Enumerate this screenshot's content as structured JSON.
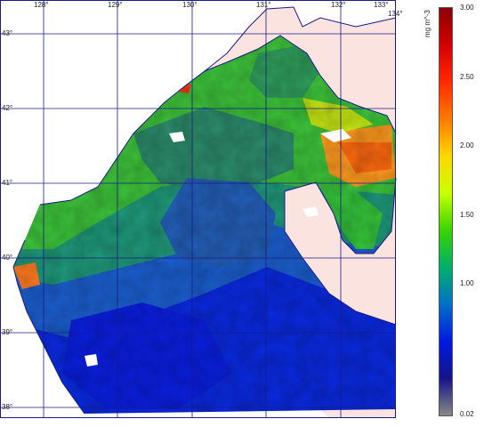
{
  "map": {
    "lon_labels": [
      "128°",
      "129°",
      "130°",
      "131°",
      "132°",
      "133°",
      "134°"
    ],
    "lat_labels": [
      "43°",
      "42°",
      "41°",
      "40°",
      "39°",
      "38°"
    ],
    "land_color": "#fbe3e0",
    "grid_color": "#1a1a8a",
    "coast_color": "#1a1a8a"
  },
  "colorbar": {
    "unit": "mg m^-3",
    "ticks": [
      "3.00",
      "2.50",
      "2.00",
      "1.50",
      "1.00",
      "0.02"
    ],
    "colors": [
      "#8b0000",
      "#d40000",
      "#ff2a00",
      "#ff7a00",
      "#ffd800",
      "#c8ff00",
      "#39d400",
      "#00b06a",
      "#0070c8",
      "#0018e0",
      "#14148a",
      "#888888"
    ]
  }
}
